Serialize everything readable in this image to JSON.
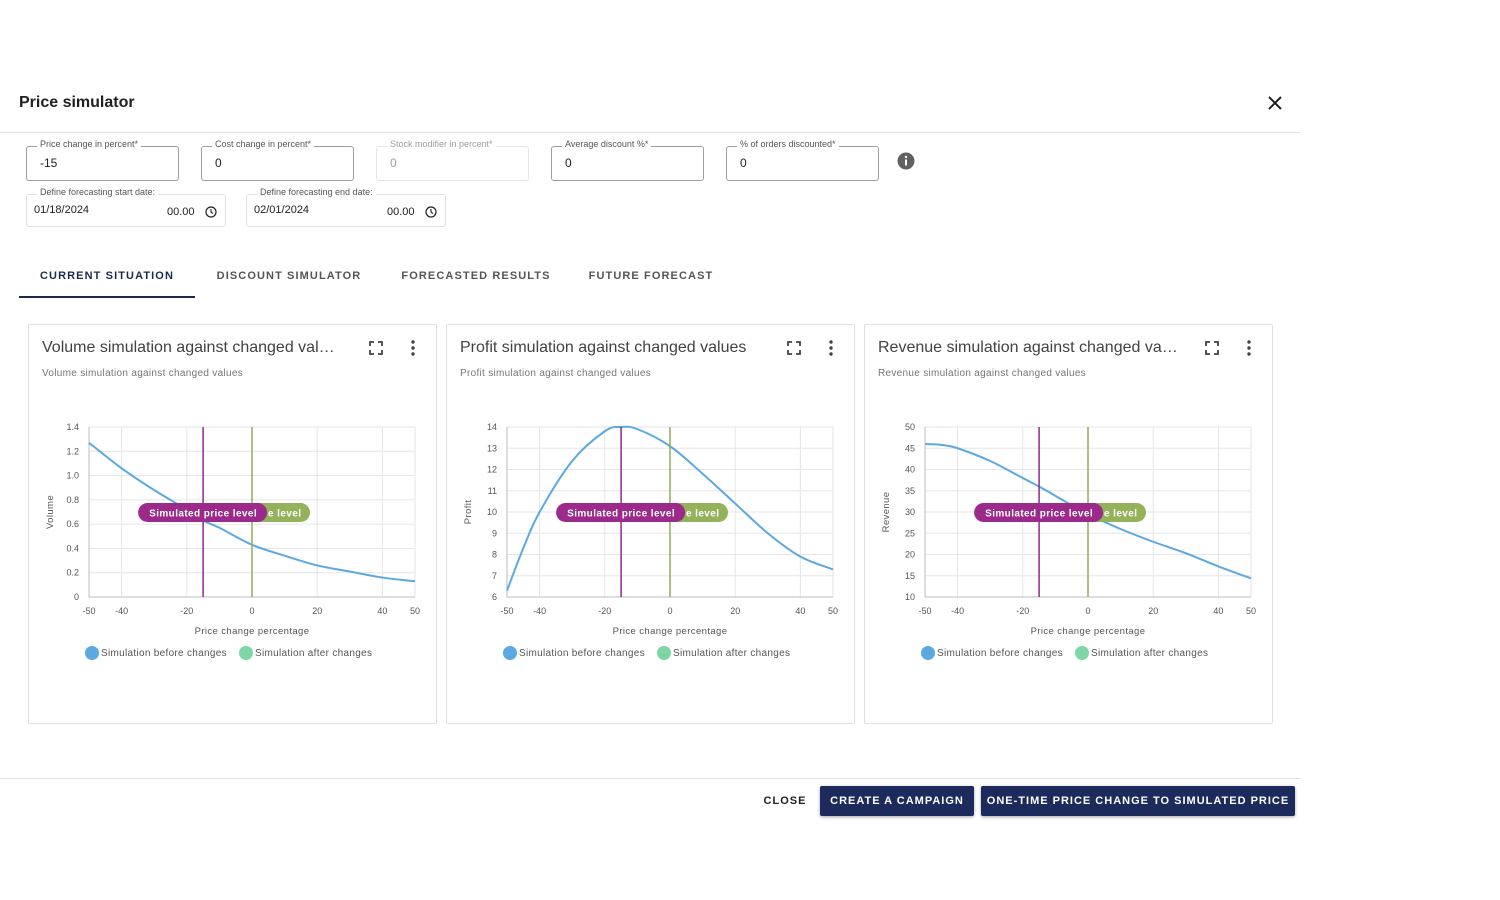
{
  "dialog": {
    "title": "Price simulator",
    "close_icon": "close-icon"
  },
  "fields": {
    "price_change": {
      "label": "Price change in percent*",
      "value": "-15"
    },
    "cost_change": {
      "label": "Cost change in percent*",
      "value": "0"
    },
    "stock_modifier": {
      "label": "Stock modifier in percent*",
      "value": "0",
      "disabled": true
    },
    "avg_discount": {
      "label": "Average discount %*",
      "value": "0"
    },
    "orders_discounted": {
      "label": "% of orders discounted*",
      "value": "0"
    },
    "info_icon": "info-icon",
    "start_date": {
      "label": "Define forecasting start date:",
      "date": "01/18/2024",
      "time": "00.00"
    },
    "end_date": {
      "label": "Define forecasting end date:",
      "date": "02/01/2024",
      "time": "00.00"
    }
  },
  "tabs": [
    {
      "label": "CURRENT SITUATION",
      "active": true
    },
    {
      "label": "DISCOUNT SIMULATOR",
      "active": false
    },
    {
      "label": "FORECASTED RESULTS",
      "active": false
    },
    {
      "label": "FUTURE FORECAST",
      "active": false
    }
  ],
  "cards": [
    {
      "title": "Volume simulation against changed values",
      "subtitle": "Volume simulation against changed values"
    },
    {
      "title": "Profit simulation against changed values",
      "subtitle": "Profit simulation against changed values"
    },
    {
      "title": "Revenue simulation against changed values",
      "subtitle": "Revenue simulation against changed values"
    }
  ],
  "colors": {
    "curve": "#5ba9e0",
    "simulated_line": "#8e2a8e",
    "simulated_badge": "#9b2a8a",
    "current_line": "#8fae5a",
    "current_badge": "#93b35a",
    "legend_before": "#5ba9e0",
    "legend_after": "#7dd6a4",
    "primary_button": "#1c2a5c"
  },
  "chart_data": [
    {
      "type": "line",
      "x": [
        -50,
        -40,
        -30,
        -20,
        -15,
        -10,
        0,
        10,
        20,
        30,
        40,
        50
      ],
      "series": [
        {
          "name": "Simulation before changes",
          "values": [
            1.27,
            1.06,
            0.88,
            0.72,
            0.63,
            0.57,
            0.43,
            0.34,
            0.26,
            0.21,
            0.16,
            0.13
          ]
        }
      ],
      "xlabel": "Price change percentage",
      "ylabel": "Volume",
      "x_ticks": [
        "-50",
        "-40",
        "-20",
        "0",
        "20",
        "40",
        "50"
      ],
      "x_tick_values": [
        -50,
        -40,
        -20,
        0,
        20,
        40,
        50
      ],
      "y_ticks": [
        "0",
        "0.2",
        "0.4",
        "0.6",
        "0.8",
        "1.0",
        "1.2",
        "1.4"
      ],
      "ylim": [
        0,
        1.4
      ],
      "xlim": [
        -50,
        50
      ],
      "simulated_x": -15,
      "current_x": 0,
      "simulated_label": "Simulated price level",
      "current_label": "Current price level",
      "current_visible": "e level",
      "legend": [
        "Simulation before changes",
        "Simulation after changes"
      ]
    },
    {
      "type": "line",
      "x": [
        -50,
        -45,
        -40,
        -30,
        -20,
        -15,
        -10,
        0,
        10,
        20,
        30,
        40,
        50
      ],
      "series": [
        {
          "name": "Simulation before changes",
          "values": [
            6.3,
            8.3,
            10.0,
            12.4,
            13.8,
            14.0,
            13.9,
            13.1,
            11.8,
            10.4,
            9.0,
            7.9,
            7.3
          ]
        }
      ],
      "xlabel": "Price change percentage",
      "ylabel": "Profit",
      "x_ticks": [
        "-50",
        "-40",
        "-20",
        "0",
        "20",
        "40",
        "50"
      ],
      "x_tick_values": [
        -50,
        -40,
        -20,
        0,
        20,
        40,
        50
      ],
      "y_ticks": [
        "6",
        "7",
        "8",
        "9",
        "10",
        "11",
        "12",
        "13",
        "14"
      ],
      "ylim": [
        6,
        14
      ],
      "xlim": [
        -50,
        50
      ],
      "simulated_x": -15,
      "current_x": 0,
      "simulated_label": "Simulated price level",
      "current_label": "Current price level",
      "current_visible": "e level",
      "legend": [
        "Simulation before changes",
        "Simulation after changes"
      ]
    },
    {
      "type": "line",
      "x": [
        -50,
        -45,
        -40,
        -30,
        -20,
        -15,
        -10,
        0,
        10,
        20,
        30,
        40,
        50
      ],
      "series": [
        {
          "name": "Simulation before changes",
          "values": [
            46,
            45.8,
            45,
            42,
            38,
            36,
            33.8,
            29.5,
            26,
            23,
            20.3,
            17.2,
            14.4
          ]
        }
      ],
      "xlabel": "Price change percentage",
      "ylabel": "Revenue",
      "x_ticks": [
        "-50",
        "-40",
        "-20",
        "0",
        "20",
        "40",
        "50"
      ],
      "x_tick_values": [
        -50,
        -40,
        -20,
        0,
        20,
        40,
        50
      ],
      "y_ticks": [
        "10",
        "15",
        "20",
        "25",
        "30",
        "35",
        "40",
        "45",
        "50"
      ],
      "ylim": [
        10,
        50
      ],
      "xlim": [
        -50,
        50
      ],
      "simulated_x": -15,
      "current_x": 0,
      "simulated_label": "Simulated price level",
      "current_label": "Current price level",
      "current_visible": "e level",
      "legend": [
        "Simulation before changes",
        "Simulation after changes"
      ]
    }
  ],
  "footer": {
    "close_label": "CLOSE",
    "campaign_label": "CREATE A CAMPAIGN",
    "onetime_label": "ONE-TIME PRICE CHANGE TO SIMULATED PRICE"
  }
}
